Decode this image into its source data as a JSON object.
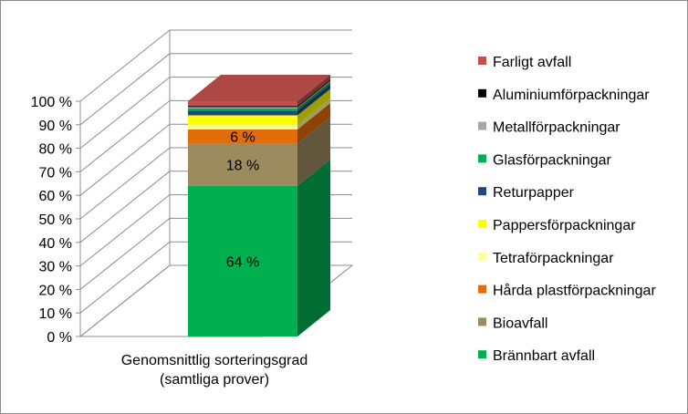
{
  "chart_data": {
    "type": "bar",
    "stacked": true,
    "percent": true,
    "three_d": true,
    "categories": [
      "Genomsnittlig sorteringsgrad (samtliga prover)"
    ],
    "category_lines": [
      "Genomsnittlig sorteringsgrad",
      "(samtliga prover)"
    ],
    "ylim": [
      0,
      100
    ],
    "yticks": [
      0,
      10,
      20,
      30,
      40,
      50,
      60,
      70,
      80,
      90,
      100
    ],
    "ytick_labels": [
      "0 %",
      "10 %",
      "20 %",
      "30 %",
      "40 %",
      "50 %",
      "60 %",
      "70 %",
      "80 %",
      "90 %",
      "100 %"
    ],
    "grid": true,
    "legend_position": "right",
    "series": [
      {
        "name": "Brännbart avfall",
        "values": [
          64
        ],
        "color": "#00b050",
        "label": "64 %"
      },
      {
        "name": "Bioavfall",
        "values": [
          18
        ],
        "color": "#9c8b5e",
        "label": "18 %"
      },
      {
        "name": "Hårda plastförpackningar",
        "values": [
          6
        ],
        "color": "#e36c0a",
        "label": "6 %"
      },
      {
        "name": "Tetraförpackningar",
        "values": [
          2
        ],
        "color": "#ffff99",
        "label": ""
      },
      {
        "name": "Pappersförpackningar",
        "values": [
          4
        ],
        "color": "#ffff00",
        "label": ""
      },
      {
        "name": "Returpapper",
        "values": [
          2
        ],
        "color": "#1f497d",
        "label": ""
      },
      {
        "name": "Glasförpackningar",
        "values": [
          1
        ],
        "color": "#00b050",
        "label": ""
      },
      {
        "name": "Metallförpackningar",
        "values": [
          0.5
        ],
        "color": "#a6a6a6",
        "label": ""
      },
      {
        "name": "Aluminiumförpackningar",
        "values": [
          0.5
        ],
        "color": "#000000",
        "label": ""
      },
      {
        "name": "Farligt avfall",
        "values": [
          2
        ],
        "color": "#c0504d",
        "label": ""
      }
    ]
  }
}
